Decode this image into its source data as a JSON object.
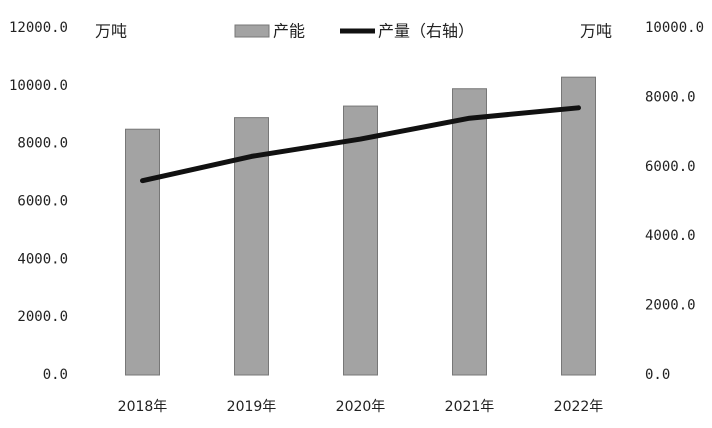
{
  "chart_data": {
    "type": "bar_line",
    "ylabel": "万吨",
    "y2label": "万吨",
    "categories": [
      "2018年",
      "2019年",
      "2020年",
      "2021年",
      "2022年"
    ],
    "series": [
      {
        "name": "产能",
        "type": "bar",
        "color": "#a3a3a3",
        "values": [
          8500,
          8900,
          9300,
          9900,
          10300
        ]
      },
      {
        "name": "产量（右轴）",
        "type": "line",
        "axis": "y2",
        "color": "#111111",
        "values": [
          5600,
          6300,
          6800,
          7400,
          7700
        ]
      }
    ],
    "ylim": [
      0,
      12000
    ],
    "yticks": [
      {
        "value": 0,
        "label": "0.0"
      },
      {
        "value": 2000,
        "label": "2000.0"
      },
      {
        "value": 4000,
        "label": "4000.0"
      },
      {
        "value": 6000,
        "label": "6000.0"
      },
      {
        "value": 8000,
        "label": "8000.0"
      },
      {
        "value": 10000,
        "label": "10000.0"
      },
      {
        "value": 12000,
        "label": "12000.0"
      }
    ],
    "y2lim": [
      0,
      10000
    ],
    "y2ticks": [
      {
        "value": 0,
        "label": "0.0"
      },
      {
        "value": 2000,
        "label": "2000.0"
      },
      {
        "value": 4000,
        "label": "4000.0"
      },
      {
        "value": 6000,
        "label": "6000.0"
      },
      {
        "value": 8000,
        "label": "8000.0"
      },
      {
        "value": 10000,
        "label": "10000.0"
      }
    ],
    "grid": false,
    "legend": "top"
  }
}
